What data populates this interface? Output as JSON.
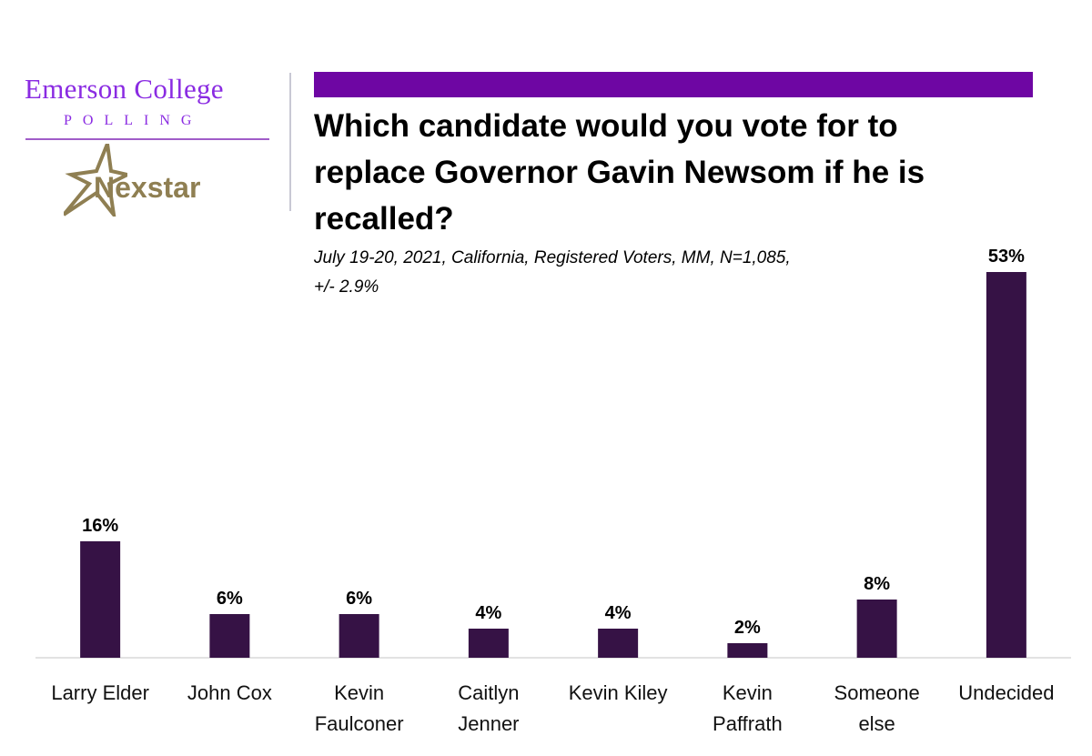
{
  "logo": {
    "college": "Emerson College",
    "polling": "POLLING",
    "partner": "Nexstar"
  },
  "colors": {
    "accent": "#6e06a3",
    "bar": "#361245",
    "logo_purple": "#8a2be2",
    "nexstar_gold": "#8f7f52"
  },
  "header": {
    "title": "Which candidate would you vote for to replace Governor Gavin Newsom if he is recalled?",
    "subtitle_line1": "July 19-20, 2021, California, Registered Voters, MM,  N=1,085,",
    "subtitle_line2": "+/-  2.9%"
  },
  "chart_data": {
    "type": "bar",
    "categories": [
      [
        "Larry Elder"
      ],
      [
        "John Cox"
      ],
      [
        "Kevin",
        "Faulconer"
      ],
      [
        "Caitlyn",
        "Jenner"
      ],
      [
        "Kevin Kiley"
      ],
      [
        "Kevin",
        "Paffrath"
      ],
      [
        "Someone",
        "else"
      ],
      [
        "Undecided"
      ]
    ],
    "values": [
      16,
      6,
      6,
      4,
      4,
      2,
      8,
      53
    ],
    "data_labels": [
      "16%",
      "6%",
      "6%",
      "4%",
      "4%",
      "2%",
      "8%",
      "53%"
    ],
    "ylim": [
      0,
      53
    ],
    "grid": false,
    "legend": "none"
  }
}
